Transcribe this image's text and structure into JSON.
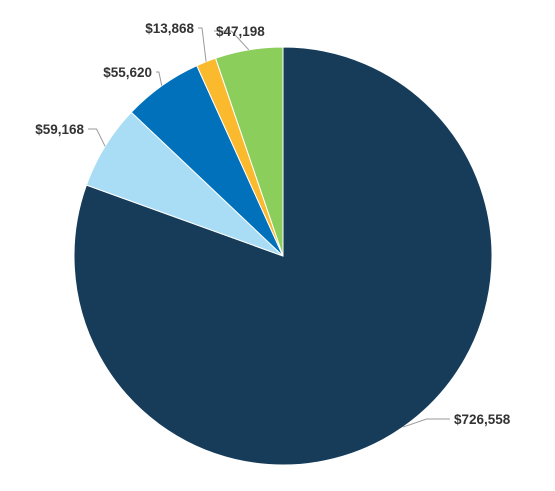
{
  "chart_data": {
    "type": "pie",
    "title": "",
    "slices": [
      {
        "label": "$726,558",
        "value": 726558,
        "color": "#163C5A"
      },
      {
        "label": "$59,168",
        "value": 59168,
        "color": "#A8DDF5"
      },
      {
        "label": "$55,620",
        "value": 55620,
        "color": "#0171BB"
      },
      {
        "label": "$13,868",
        "value": 13868,
        "color": "#FBBA2E"
      },
      {
        "label": "$47,198",
        "value": 47198,
        "color": "#8CCE5B"
      }
    ],
    "start_angle_deg": 0,
    "direction": "clockwise",
    "legend": "none",
    "data_labels": "outside with leader lines"
  }
}
